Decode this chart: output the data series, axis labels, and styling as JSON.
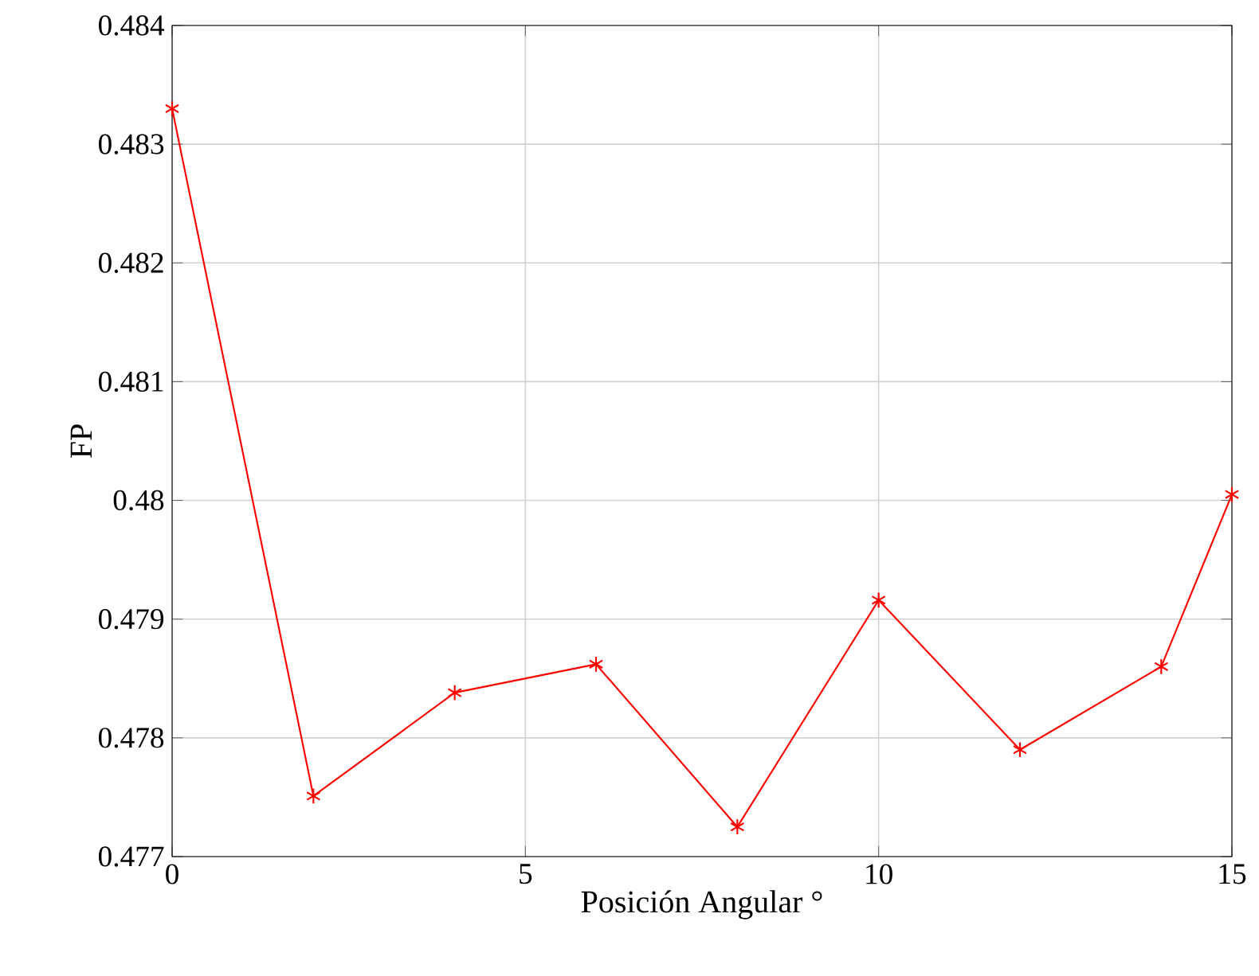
{
  "chart_data": {
    "type": "line",
    "xlabel": "Posición Angular °",
    "ylabel": "FP",
    "x": [
      0,
      2,
      4,
      6,
      8,
      10,
      12,
      14,
      15
    ],
    "series": [
      {
        "color": "#ff0000",
        "values": [
          0.4833,
          0.47751,
          0.47838,
          0.47862,
          0.47725,
          0.47916,
          0.4779,
          0.4786,
          0.48005
        ]
      }
    ],
    "xlim": [
      0,
      15
    ],
    "ylim": [
      0.477,
      0.484
    ],
    "xticks": [
      0,
      5,
      10,
      15
    ],
    "yticks": [
      0.477,
      0.478,
      0.479,
      0.48,
      0.481,
      0.482,
      0.483,
      0.484
    ],
    "grid": true,
    "marker": "cross",
    "line_style": "solid"
  }
}
